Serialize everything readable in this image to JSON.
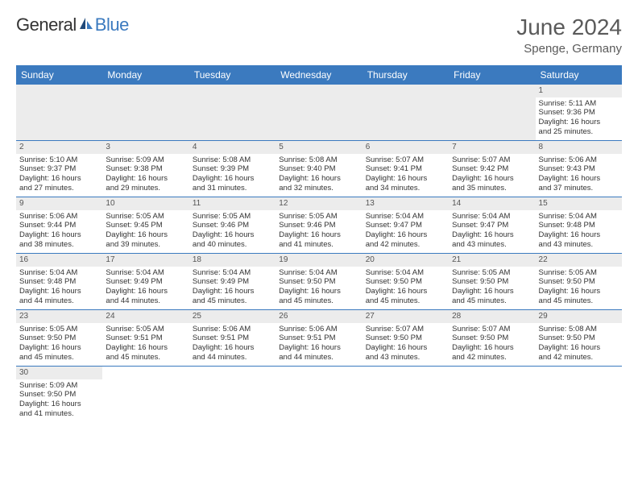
{
  "brand": {
    "general": "General",
    "blue": "Blue"
  },
  "title": "June 2024",
  "location": "Spenge, Germany",
  "colors": {
    "header_bg": "#3b7abf",
    "header_text": "#ffffff",
    "daynum_bg": "#ececec",
    "text": "#333333",
    "divider": "#3b7abf"
  },
  "weekdays": [
    "Sunday",
    "Monday",
    "Tuesday",
    "Wednesday",
    "Thursday",
    "Friday",
    "Saturday"
  ],
  "weeks": [
    [
      null,
      null,
      null,
      null,
      null,
      null,
      {
        "n": "1",
        "sr": "Sunrise: 5:11 AM",
        "ss": "Sunset: 9:36 PM",
        "d1": "Daylight: 16 hours",
        "d2": "and 25 minutes."
      }
    ],
    [
      {
        "n": "2",
        "sr": "Sunrise: 5:10 AM",
        "ss": "Sunset: 9:37 PM",
        "d1": "Daylight: 16 hours",
        "d2": "and 27 minutes."
      },
      {
        "n": "3",
        "sr": "Sunrise: 5:09 AM",
        "ss": "Sunset: 9:38 PM",
        "d1": "Daylight: 16 hours",
        "d2": "and 29 minutes."
      },
      {
        "n": "4",
        "sr": "Sunrise: 5:08 AM",
        "ss": "Sunset: 9:39 PM",
        "d1": "Daylight: 16 hours",
        "d2": "and 31 minutes."
      },
      {
        "n": "5",
        "sr": "Sunrise: 5:08 AM",
        "ss": "Sunset: 9:40 PM",
        "d1": "Daylight: 16 hours",
        "d2": "and 32 minutes."
      },
      {
        "n": "6",
        "sr": "Sunrise: 5:07 AM",
        "ss": "Sunset: 9:41 PM",
        "d1": "Daylight: 16 hours",
        "d2": "and 34 minutes."
      },
      {
        "n": "7",
        "sr": "Sunrise: 5:07 AM",
        "ss": "Sunset: 9:42 PM",
        "d1": "Daylight: 16 hours",
        "d2": "and 35 minutes."
      },
      {
        "n": "8",
        "sr": "Sunrise: 5:06 AM",
        "ss": "Sunset: 9:43 PM",
        "d1": "Daylight: 16 hours",
        "d2": "and 37 minutes."
      }
    ],
    [
      {
        "n": "9",
        "sr": "Sunrise: 5:06 AM",
        "ss": "Sunset: 9:44 PM",
        "d1": "Daylight: 16 hours",
        "d2": "and 38 minutes."
      },
      {
        "n": "10",
        "sr": "Sunrise: 5:05 AM",
        "ss": "Sunset: 9:45 PM",
        "d1": "Daylight: 16 hours",
        "d2": "and 39 minutes."
      },
      {
        "n": "11",
        "sr": "Sunrise: 5:05 AM",
        "ss": "Sunset: 9:46 PM",
        "d1": "Daylight: 16 hours",
        "d2": "and 40 minutes."
      },
      {
        "n": "12",
        "sr": "Sunrise: 5:05 AM",
        "ss": "Sunset: 9:46 PM",
        "d1": "Daylight: 16 hours",
        "d2": "and 41 minutes."
      },
      {
        "n": "13",
        "sr": "Sunrise: 5:04 AM",
        "ss": "Sunset: 9:47 PM",
        "d1": "Daylight: 16 hours",
        "d2": "and 42 minutes."
      },
      {
        "n": "14",
        "sr": "Sunrise: 5:04 AM",
        "ss": "Sunset: 9:47 PM",
        "d1": "Daylight: 16 hours",
        "d2": "and 43 minutes."
      },
      {
        "n": "15",
        "sr": "Sunrise: 5:04 AM",
        "ss": "Sunset: 9:48 PM",
        "d1": "Daylight: 16 hours",
        "d2": "and 43 minutes."
      }
    ],
    [
      {
        "n": "16",
        "sr": "Sunrise: 5:04 AM",
        "ss": "Sunset: 9:48 PM",
        "d1": "Daylight: 16 hours",
        "d2": "and 44 minutes."
      },
      {
        "n": "17",
        "sr": "Sunrise: 5:04 AM",
        "ss": "Sunset: 9:49 PM",
        "d1": "Daylight: 16 hours",
        "d2": "and 44 minutes."
      },
      {
        "n": "18",
        "sr": "Sunrise: 5:04 AM",
        "ss": "Sunset: 9:49 PM",
        "d1": "Daylight: 16 hours",
        "d2": "and 45 minutes."
      },
      {
        "n": "19",
        "sr": "Sunrise: 5:04 AM",
        "ss": "Sunset: 9:50 PM",
        "d1": "Daylight: 16 hours",
        "d2": "and 45 minutes."
      },
      {
        "n": "20",
        "sr": "Sunrise: 5:04 AM",
        "ss": "Sunset: 9:50 PM",
        "d1": "Daylight: 16 hours",
        "d2": "and 45 minutes."
      },
      {
        "n": "21",
        "sr": "Sunrise: 5:05 AM",
        "ss": "Sunset: 9:50 PM",
        "d1": "Daylight: 16 hours",
        "d2": "and 45 minutes."
      },
      {
        "n": "22",
        "sr": "Sunrise: 5:05 AM",
        "ss": "Sunset: 9:50 PM",
        "d1": "Daylight: 16 hours",
        "d2": "and 45 minutes."
      }
    ],
    [
      {
        "n": "23",
        "sr": "Sunrise: 5:05 AM",
        "ss": "Sunset: 9:50 PM",
        "d1": "Daylight: 16 hours",
        "d2": "and 45 minutes."
      },
      {
        "n": "24",
        "sr": "Sunrise: 5:05 AM",
        "ss": "Sunset: 9:51 PM",
        "d1": "Daylight: 16 hours",
        "d2": "and 45 minutes."
      },
      {
        "n": "25",
        "sr": "Sunrise: 5:06 AM",
        "ss": "Sunset: 9:51 PM",
        "d1": "Daylight: 16 hours",
        "d2": "and 44 minutes."
      },
      {
        "n": "26",
        "sr": "Sunrise: 5:06 AM",
        "ss": "Sunset: 9:51 PM",
        "d1": "Daylight: 16 hours",
        "d2": "and 44 minutes."
      },
      {
        "n": "27",
        "sr": "Sunrise: 5:07 AM",
        "ss": "Sunset: 9:50 PM",
        "d1": "Daylight: 16 hours",
        "d2": "and 43 minutes."
      },
      {
        "n": "28",
        "sr": "Sunrise: 5:07 AM",
        "ss": "Sunset: 9:50 PM",
        "d1": "Daylight: 16 hours",
        "d2": "and 42 minutes."
      },
      {
        "n": "29",
        "sr": "Sunrise: 5:08 AM",
        "ss": "Sunset: 9:50 PM",
        "d1": "Daylight: 16 hours",
        "d2": "and 42 minutes."
      }
    ],
    [
      {
        "n": "30",
        "sr": "Sunrise: 5:09 AM",
        "ss": "Sunset: 9:50 PM",
        "d1": "Daylight: 16 hours",
        "d2": "and 41 minutes."
      },
      null,
      null,
      null,
      null,
      null,
      null
    ]
  ]
}
